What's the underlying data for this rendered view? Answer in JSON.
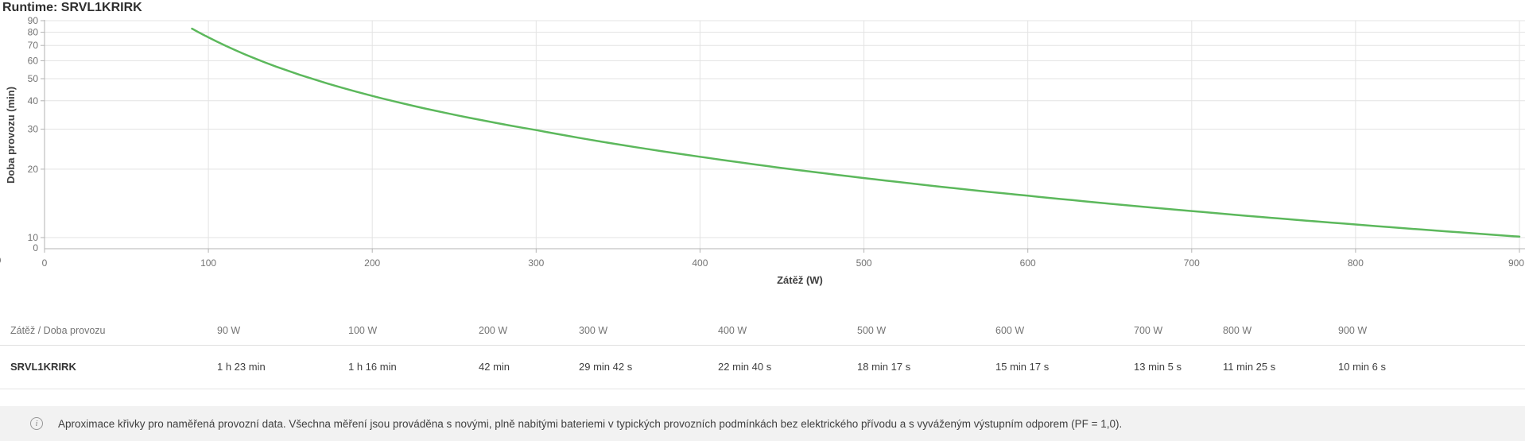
{
  "title": "Runtime: SRVL1KRIRK",
  "edge_fragment": "0",
  "colors": {
    "curve": "#5cb85c",
    "grid": "#e3e3e3",
    "axis": "#b3b3b3",
    "tick_text": "#737373",
    "axis_label_text": "#404040",
    "title_text": "#2f2f2f",
    "footer_bg": "#f2f2f2",
    "table_border": "#e0e0e0"
  },
  "chart_data": {
    "type": "line",
    "title": "Runtime: SRVL1KRIRK",
    "xlabel": "Zátěž (W)",
    "ylabel": "Doba provozu (min)",
    "x_scale": "linear",
    "y_scale": "log10",
    "xlim": [
      0,
      900
    ],
    "ylim_log": [
      10,
      90
    ],
    "x_ticks": [
      0,
      100,
      200,
      300,
      400,
      500,
      600,
      700,
      800,
      900
    ],
    "y_ticks": [
      90,
      80,
      70,
      60,
      50,
      40,
      30,
      20,
      10
    ],
    "y_zero_label": "0",
    "grid": true,
    "legend_position": "none",
    "series": [
      {
        "name": "SRVL1KRIRK",
        "color": "#5cb85c",
        "points_w_min": [
          [
            90,
            83
          ],
          [
            100,
            76
          ],
          [
            200,
            42
          ],
          [
            300,
            29.7
          ],
          [
            400,
            22.67
          ],
          [
            500,
            18.28
          ],
          [
            600,
            15.28
          ],
          [
            700,
            13.08
          ],
          [
            800,
            11.42
          ],
          [
            900,
            10.1
          ]
        ]
      }
    ]
  },
  "table": {
    "corner_label": "Zátěž / Doba provozu",
    "columns": [
      "90 W",
      "100 W",
      "200 W",
      "300 W",
      "400 W",
      "500 W",
      "600 W",
      "700 W",
      "800 W",
      "900 W"
    ],
    "rows": [
      {
        "name": "SRVL1KRIRK",
        "values": [
          "1 h 23 min",
          "1 h 16 min",
          "42 min",
          "29 min 42 s",
          "22 min 40 s",
          "18 min 17 s",
          "15 min 17 s",
          "13 min 5 s",
          "11 min 25 s",
          "10 min 6 s"
        ]
      }
    ]
  },
  "footer": {
    "note": "Aproximace křivky pro naměřená provozní data. Všechna měření jsou prováděna s novými, plně nabitými bateriemi v typických provozních podmínkách bez elektrického přívodu a s vyváženým výstupním odporem (PF = 1,0)."
  }
}
